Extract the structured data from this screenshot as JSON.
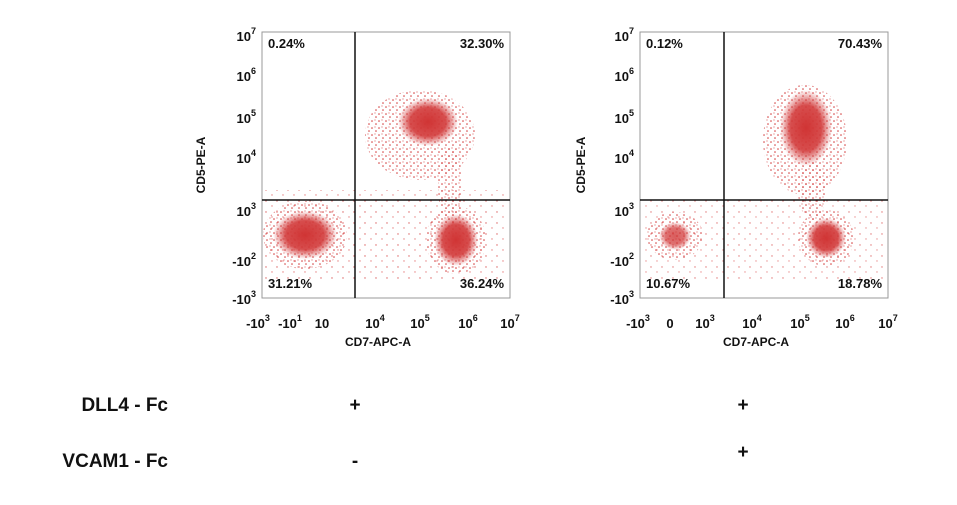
{
  "panels": [
    {
      "y_label": "CD5-PE-A",
      "x_label": "CD7-APC-A",
      "quadrants": {
        "upper_left": "0.24%",
        "upper_right": "32.30%",
        "lower_left": "31.21%",
        "lower_right": "36.24%"
      },
      "x_ticks": [
        {
          "base": "-10",
          "exp": "3"
        },
        {
          "base": "-10",
          "exp": "1"
        },
        {
          "base": "10"
        },
        {
          "base": "10",
          "exp": "4"
        },
        {
          "base": "10",
          "exp": "5"
        },
        {
          "base": "10",
          "exp": "6"
        },
        {
          "base": "10",
          "exp": "7"
        }
      ],
      "y_ticks": [
        {
          "base": "10",
          "exp": "7"
        },
        {
          "base": "10",
          "exp": "6"
        },
        {
          "base": "10",
          "exp": "5"
        },
        {
          "base": "10",
          "exp": "4"
        },
        {
          "base": "10",
          "exp": "3"
        },
        {
          "base": "-10",
          "exp": "2"
        },
        {
          "base": "-10",
          "exp": "3"
        }
      ]
    },
    {
      "y_label": "CD5-PE-A",
      "x_label": "CD7-APC-A",
      "quadrants": {
        "upper_left": "0.12%",
        "upper_right": "70.43%",
        "lower_left": "10.67%",
        "lower_right": "18.78%"
      },
      "x_ticks": [
        {
          "base": "-10",
          "exp": "3"
        },
        {
          "base": "0"
        },
        {
          "base": "10",
          "exp": "3"
        },
        {
          "base": "10",
          "exp": "4"
        },
        {
          "base": "10",
          "exp": "5"
        },
        {
          "base": "10",
          "exp": "6"
        },
        {
          "base": "10",
          "exp": "7"
        }
      ],
      "y_ticks": [
        {
          "base": "10",
          "exp": "7"
        },
        {
          "base": "10",
          "exp": "6"
        },
        {
          "base": "10",
          "exp": "5"
        },
        {
          "base": "10",
          "exp": "4"
        },
        {
          "base": "10",
          "exp": "3"
        },
        {
          "base": "-10",
          "exp": "2"
        },
        {
          "base": "-10",
          "exp": "3"
        }
      ]
    }
  ],
  "conditions": [
    {
      "label": "DLL4 - Fc",
      "values": [
        "+",
        "+"
      ]
    },
    {
      "label": "VCAM1 - Fc",
      "values": [
        "-",
        "+"
      ]
    }
  ]
}
